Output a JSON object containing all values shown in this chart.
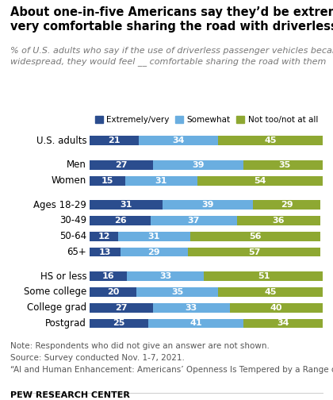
{
  "title": "About one-in-five Americans say they’d be extremely or\nvery comfortable sharing the road with driverless cars",
  "subtitle": "% of U.S. adults who say if the use of driverless passenger vehicles became\nwidespread, they would feel __ comfortable sharing the road with them",
  "categories": [
    "U.S. adults",
    "Men",
    "Women",
    "Ages 18-29",
    "30-49",
    "50-64",
    "65+",
    "HS or less",
    "Some college",
    "College grad",
    "Postgrad"
  ],
  "extremely_very": [
    21,
    27,
    15,
    31,
    26,
    12,
    13,
    16,
    20,
    27,
    25
  ],
  "somewhat": [
    34,
    39,
    31,
    39,
    37,
    31,
    29,
    33,
    35,
    33,
    41
  ],
  "not_too": [
    45,
    35,
    54,
    29,
    36,
    56,
    57,
    51,
    45,
    40,
    34
  ],
  "color_extremely": "#2b4d8e",
  "color_somewhat": "#6aaee0",
  "color_not_too": "#8ea832",
  "note1": "Note: Respondents who did not give an answer are not shown.",
  "note2": "Source: Survey conducted Nov. 1-7, 2021.",
  "note3": "“AI and Human Enhancement: Americans’ Openness Is Tempered by a Range of Concerns”",
  "footer": "PEW RESEARCH CENTER",
  "legend_labels": [
    "Extremely/very",
    "Somewhat",
    "Not too/not at all"
  ],
  "group_assignments": [
    0,
    1,
    1,
    2,
    2,
    2,
    2,
    3,
    3,
    3,
    3
  ],
  "bar_height": 0.6,
  "font_size_title": 10.5,
  "font_size_subtitle": 8.0,
  "font_size_cat": 8.5,
  "font_size_values": 8.0,
  "font_size_note": 7.5,
  "font_size_footer": 8.0
}
